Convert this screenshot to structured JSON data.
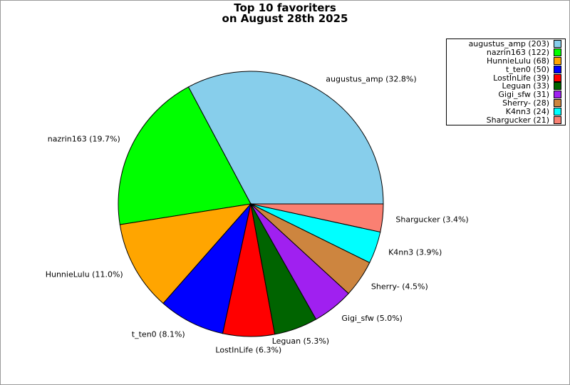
{
  "page": {
    "background": "#ffffff",
    "frame_border_color": "#9a9a9a",
    "text_color": "#000000"
  },
  "chart_data": {
    "type": "pie",
    "title": "Top 10 favoriters",
    "subtitle": "on August 28th 2025",
    "legend_position": "top-right",
    "start_angle_deg": 0,
    "direction": "counterclockwise",
    "slice_outline_color": "#000000",
    "slices": [
      {
        "name": "augustus_amp",
        "count": 203,
        "pct": 32.8,
        "color": "#87CEEB",
        "pie_label": "augustus_amp (32.8%)",
        "legend_label": "augustus_amp (203)"
      },
      {
        "name": "nazrin163",
        "count": 122,
        "pct": 19.7,
        "color": "#00FF00",
        "pie_label": "nazrin163 (19.7%)",
        "legend_label": "nazrin163 (122)"
      },
      {
        "name": "HunnieLulu",
        "count": 68,
        "pct": 11.0,
        "color": "#FFA500",
        "pie_label": "HunnieLulu (11.0%)",
        "legend_label": "HunnieLulu (68)"
      },
      {
        "name": "t_ten0",
        "count": 50,
        "pct": 8.1,
        "color": "#0000FF",
        "pie_label": "t_ten0 (8.1%)",
        "legend_label": "t_ten0 (50)"
      },
      {
        "name": "LostInLife",
        "count": 39,
        "pct": 6.3,
        "color": "#FF0000",
        "pie_label": "LostInLife (6.3%)",
        "legend_label": "LostInLife (39)"
      },
      {
        "name": "Leguan",
        "count": 33,
        "pct": 5.3,
        "color": "#006400",
        "pie_label": "Leguan (5.3%)",
        "legend_label": "Leguan (33)"
      },
      {
        "name": "Gigi_sfw",
        "count": 31,
        "pct": 5.0,
        "color": "#A020F0",
        "pie_label": "Gigi_sfw (5.0%)",
        "legend_label": "Gigi_sfw (31)"
      },
      {
        "name": "Sherry-",
        "count": 28,
        "pct": 4.5,
        "color": "#CD853F",
        "pie_label": "Sherry- (4.5%)",
        "legend_label": "Sherry- (28)"
      },
      {
        "name": "K4nn3",
        "count": 24,
        "pct": 3.9,
        "color": "#00FFFF",
        "pie_label": "K4nn3 (3.9%)",
        "legend_label": "K4nn3 (24)"
      },
      {
        "name": "Shargucker",
        "count": 21,
        "pct": 3.4,
        "color": "#FA8072",
        "pie_label": "Shargucker (3.4%)",
        "legend_label": "Shargucker (21)"
      }
    ]
  }
}
